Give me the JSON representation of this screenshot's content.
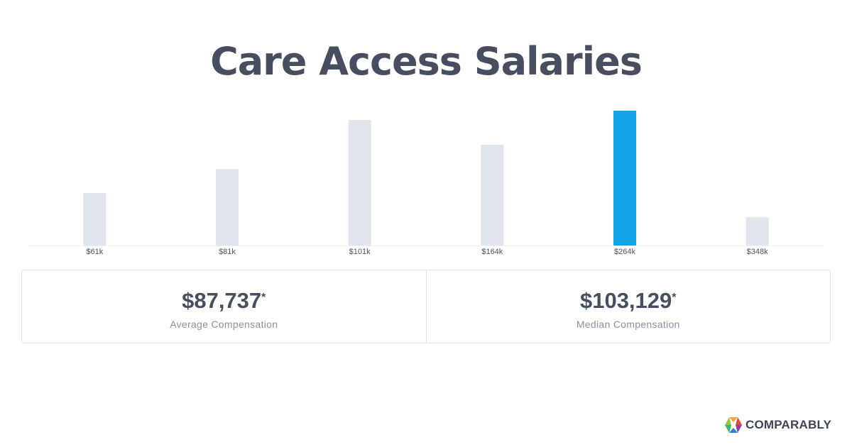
{
  "page": {
    "title": "Care Access Salaries"
  },
  "chart_data": {
    "type": "bar",
    "title": "Care Access Salaries",
    "categories": [
      "$61k",
      "$81k",
      "$101k",
      "$164k",
      "$264k",
      "$348k"
    ],
    "values": [
      74,
      108,
      177,
      142,
      190,
      40
    ],
    "highlight_index": 4,
    "ylim": [
      0,
      190
    ],
    "xlabel": "",
    "ylabel": "",
    "grid": false,
    "colors": {
      "bar": "#e1e6ec",
      "highlight": "#12a4e9",
      "baseline": "#eef1f4"
    }
  },
  "stats": {
    "average": {
      "value": "$87,737",
      "star": "*",
      "label": "Average Compensation"
    },
    "median": {
      "value": "$103,129",
      "star": "*",
      "label": "Median Compensation"
    }
  },
  "brand": {
    "name": "COMPARABLY",
    "logo_icon": "comparably-logo-icon"
  }
}
